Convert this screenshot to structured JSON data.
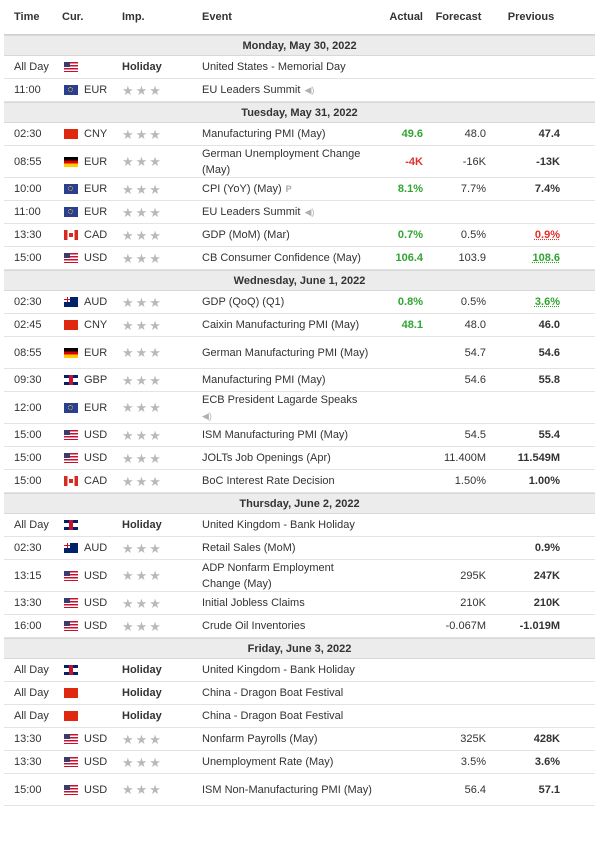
{
  "headers": {
    "time": "Time",
    "cur": "Cur.",
    "imp": "Imp.",
    "event": "Event",
    "actual": "Actual",
    "forecast": "Forecast",
    "previous": "Previous"
  },
  "rows": [
    {
      "kind": "date",
      "label": "Monday, May 30, 2022"
    },
    {
      "kind": "event",
      "time": "All Day",
      "flag": "us",
      "cur": "",
      "holiday": "Holiday",
      "event": "United States - Memorial Day",
      "actual": "",
      "forecast": "",
      "previous": ""
    },
    {
      "kind": "event",
      "time": "11:00",
      "flag": "eu",
      "cur": "EUR",
      "holiday": "",
      "event": "EU Leaders Summit",
      "icon": "speaker-icon",
      "actual": "",
      "forecast": "",
      "previous": ""
    },
    {
      "kind": "date",
      "label": "Tuesday, May 31, 2022"
    },
    {
      "kind": "event",
      "time": "02:30",
      "flag": "cn",
      "cur": "CNY",
      "holiday": "",
      "event": "Manufacturing PMI (May)",
      "actual": "49.6",
      "actual_color": "pos",
      "forecast": "48.0",
      "previous": "47.4"
    },
    {
      "kind": "event",
      "time": "08:55",
      "flag": "de",
      "cur": "EUR",
      "holiday": "",
      "event": "German Unemployment Change (May)",
      "actual": "-4K",
      "actual_color": "neg",
      "forecast": "-16K",
      "previous": "-13K",
      "tall": true
    },
    {
      "kind": "event",
      "time": "10:00",
      "flag": "eu",
      "cur": "EUR",
      "holiday": "",
      "event": "CPI (YoY) (May)",
      "icon": "preliminary-icon",
      "actual": "8.1%",
      "actual_color": "pos",
      "forecast": "7.7%",
      "previous": "7.4%"
    },
    {
      "kind": "event",
      "time": "11:00",
      "flag": "eu",
      "cur": "EUR",
      "holiday": "",
      "event": "EU Leaders Summit",
      "icon": "speaker-icon",
      "actual": "",
      "forecast": "",
      "previous": ""
    },
    {
      "kind": "event",
      "time": "13:30",
      "flag": "ca",
      "cur": "CAD",
      "holiday": "",
      "event": "GDP (MoM) (Mar)",
      "actual": "0.7%",
      "actual_color": "pos",
      "forecast": "0.5%",
      "previous": "0.9%",
      "previous_color": "u-neg"
    },
    {
      "kind": "event",
      "time": "15:00",
      "flag": "us",
      "cur": "USD",
      "holiday": "",
      "event": "CB Consumer Confidence (May)",
      "actual": "106.4",
      "actual_color": "pos",
      "forecast": "103.9",
      "previous": "108.6",
      "previous_color": "u-pos"
    },
    {
      "kind": "date",
      "label": "Wednesday, June 1, 2022"
    },
    {
      "kind": "event",
      "time": "02:30",
      "flag": "au",
      "cur": "AUD",
      "holiday": "",
      "event": "GDP (QoQ) (Q1)",
      "actual": "0.8%",
      "actual_color": "pos",
      "forecast": "0.5%",
      "previous": "3.6%",
      "previous_color": "u-pos"
    },
    {
      "kind": "event",
      "time": "02:45",
      "flag": "cn",
      "cur": "CNY",
      "holiday": "",
      "event": "Caixin Manufacturing PMI (May)",
      "actual": "48.1",
      "actual_color": "pos",
      "forecast": "48.0",
      "previous": "46.0"
    },
    {
      "kind": "event",
      "time": "08:55",
      "flag": "de",
      "cur": "EUR",
      "holiday": "",
      "event": "German Manufacturing PMI (May)",
      "actual": "",
      "forecast": "54.7",
      "previous": "54.6",
      "tall": true
    },
    {
      "kind": "event",
      "time": "09:30",
      "flag": "gb",
      "cur": "GBP",
      "holiday": "",
      "event": "Manufacturing PMI (May)",
      "actual": "",
      "forecast": "54.6",
      "previous": "55.8"
    },
    {
      "kind": "event",
      "time": "12:00",
      "flag": "eu",
      "cur": "EUR",
      "holiday": "",
      "event": "ECB President Lagarde Speaks",
      "icon": "speaker-icon",
      "icon_newline": true,
      "actual": "",
      "forecast": "",
      "previous": "",
      "tall": true
    },
    {
      "kind": "event",
      "time": "15:00",
      "flag": "us",
      "cur": "USD",
      "holiday": "",
      "event": "ISM Manufacturing PMI (May)",
      "actual": "",
      "forecast": "54.5",
      "previous": "55.4"
    },
    {
      "kind": "event",
      "time": "15:00",
      "flag": "us",
      "cur": "USD",
      "holiday": "",
      "event": "JOLTs Job Openings (Apr)",
      "actual": "",
      "forecast": "11.400M",
      "previous": "11.549M"
    },
    {
      "kind": "event",
      "time": "15:00",
      "flag": "ca",
      "cur": "CAD",
      "holiday": "",
      "event": "BoC Interest Rate Decision",
      "actual": "",
      "forecast": "1.50%",
      "previous": "1.00%"
    },
    {
      "kind": "date",
      "label": "Thursday, June 2, 2022"
    },
    {
      "kind": "event",
      "time": "All Day",
      "flag": "gb",
      "cur": "",
      "holiday": "Holiday",
      "event": "United Kingdom - Bank Holiday",
      "actual": "",
      "forecast": "",
      "previous": ""
    },
    {
      "kind": "event",
      "time": "02:30",
      "flag": "au",
      "cur": "AUD",
      "holiday": "",
      "event": "Retail Sales (MoM)",
      "actual": "",
      "forecast": "",
      "previous": "0.9%"
    },
    {
      "kind": "event",
      "time": "13:15",
      "flag": "us",
      "cur": "USD",
      "holiday": "",
      "event": "ADP Nonfarm Employment Change (May)",
      "actual": "",
      "forecast": "295K",
      "previous": "247K",
      "tall": true
    },
    {
      "kind": "event",
      "time": "13:30",
      "flag": "us",
      "cur": "USD",
      "holiday": "",
      "event": "Initial Jobless Claims",
      "actual": "",
      "forecast": "210K",
      "previous": "210K"
    },
    {
      "kind": "event",
      "time": "16:00",
      "flag": "us",
      "cur": "USD",
      "holiday": "",
      "event": "Crude Oil Inventories",
      "actual": "",
      "forecast": "-0.067M",
      "previous": "-1.019M"
    },
    {
      "kind": "date",
      "label": "Friday, June 3, 2022"
    },
    {
      "kind": "event",
      "time": "All Day",
      "flag": "gb",
      "cur": "",
      "holiday": "Holiday",
      "event": "United Kingdom - Bank Holiday",
      "actual": "",
      "forecast": "",
      "previous": ""
    },
    {
      "kind": "event",
      "time": "All Day",
      "flag": "cn",
      "cur": "",
      "holiday": "Holiday",
      "event": "China - Dragon Boat Festival",
      "actual": "",
      "forecast": "",
      "previous": ""
    },
    {
      "kind": "event",
      "time": "All Day",
      "flag": "cn",
      "cur": "",
      "holiday": "Holiday",
      "event": "China - Dragon Boat Festival",
      "actual": "",
      "forecast": "",
      "previous": ""
    },
    {
      "kind": "event",
      "time": "13:30",
      "flag": "us",
      "cur": "USD",
      "holiday": "",
      "event": "Nonfarm Payrolls (May)",
      "actual": "",
      "forecast": "325K",
      "previous": "428K"
    },
    {
      "kind": "event",
      "time": "13:30",
      "flag": "us",
      "cur": "USD",
      "holiday": "",
      "event": "Unemployment Rate (May)",
      "actual": "",
      "forecast": "3.5%",
      "previous": "3.6%"
    },
    {
      "kind": "event",
      "time": "15:00",
      "flag": "us",
      "cur": "USD",
      "holiday": "",
      "event": "ISM Non-Manufacturing PMI (May)",
      "actual": "",
      "forecast": "56.4",
      "previous": "57.1",
      "tall": true
    }
  ],
  "colors": {
    "positive": "#30a530",
    "negative": "#e0312b",
    "date_row_bg": "#ececec",
    "star": "#b9b9b9"
  }
}
